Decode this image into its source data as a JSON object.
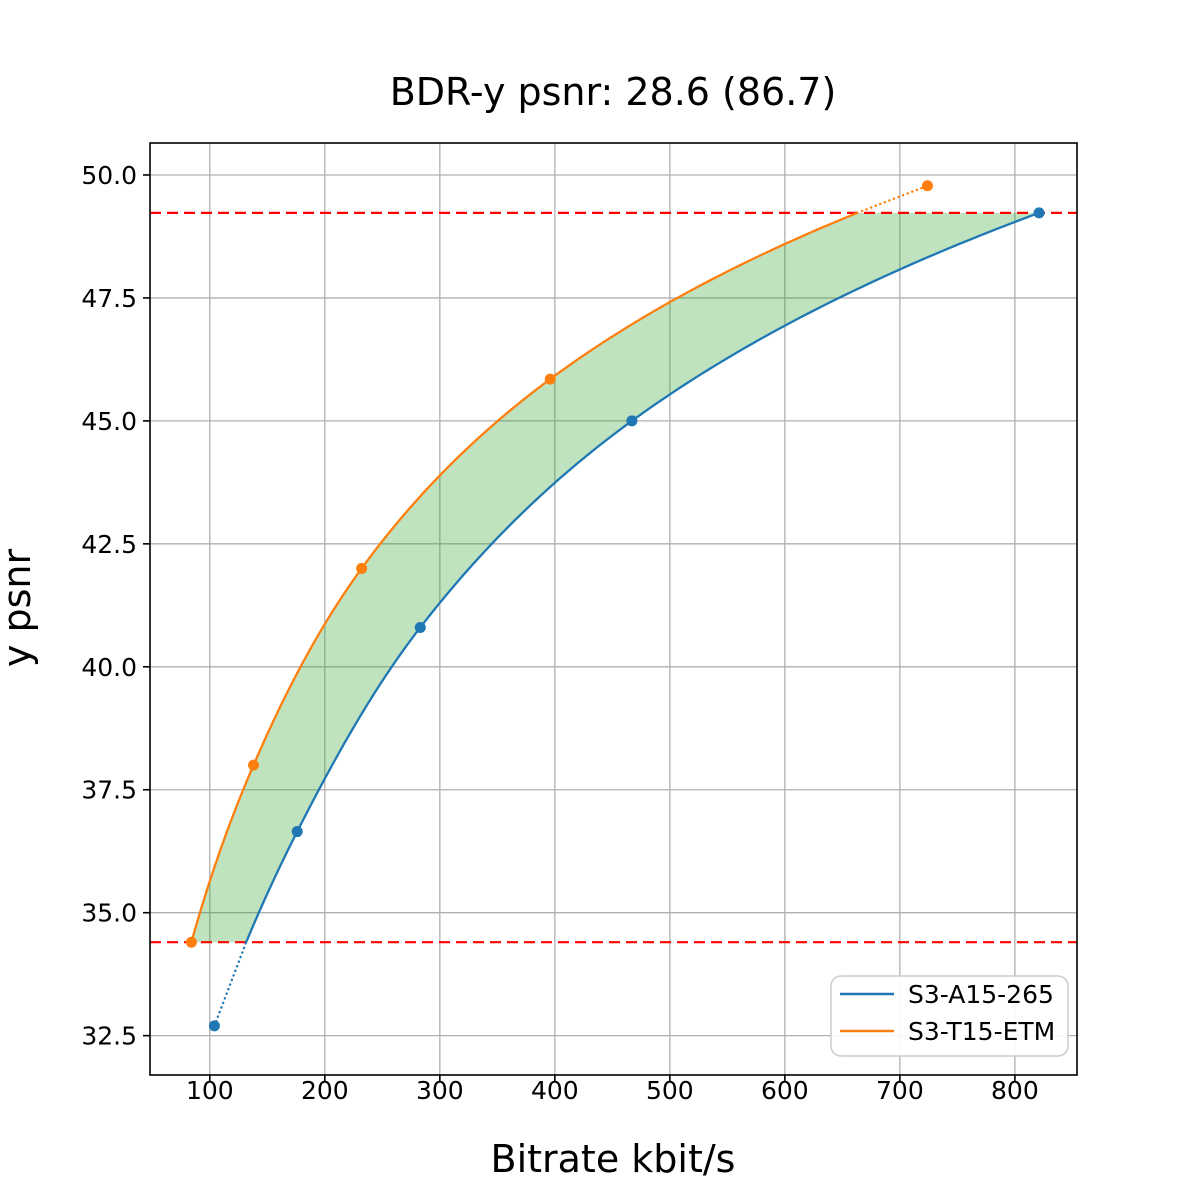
{
  "chart_data": {
    "type": "line",
    "title": "BDR-y psnr: 28.6 (86.7)",
    "xlabel": "Bitrate kbit/s",
    "ylabel": "y psnr",
    "xlim": [
      48,
      854
    ],
    "ylim": [
      31.7,
      50.65
    ],
    "xticks": [
      100,
      200,
      300,
      400,
      500,
      600,
      700,
      800
    ],
    "xtick_labels": [
      "100",
      "200",
      "300",
      "400",
      "500",
      "600",
      "700",
      "800"
    ],
    "yticks": [
      32.5,
      35.0,
      37.5,
      40.0,
      42.5,
      45.0,
      47.5,
      50.0
    ],
    "ytick_labels": [
      "32.5",
      "35.0",
      "37.5",
      "40.0",
      "42.5",
      "45.0",
      "47.5",
      "50.0"
    ],
    "grid": true,
    "grid_color": "#b0b0b0",
    "legend_position": "lower right",
    "series": [
      {
        "name": "S3-A15-265",
        "color": "#1f77b4",
        "points": [
          [
            104,
            32.7
          ],
          [
            176,
            36.65
          ],
          [
            283,
            40.8
          ],
          [
            467,
            45.0
          ],
          [
            821,
            49.23
          ]
        ]
      },
      {
        "name": "S3-T15-ETM",
        "color": "#ff7f0e",
        "points": [
          [
            84,
            34.4
          ],
          [
            138,
            38.0
          ],
          [
            232,
            42.0
          ],
          [
            396,
            45.85
          ],
          [
            724,
            49.78
          ]
        ]
      }
    ],
    "overlap_psnr_range": [
      34.4,
      49.23
    ],
    "hlines": {
      "color": "#ff0000",
      "values": [
        34.4,
        49.23
      ]
    },
    "shade_color": "rgba(44,160,44,0.3)"
  }
}
